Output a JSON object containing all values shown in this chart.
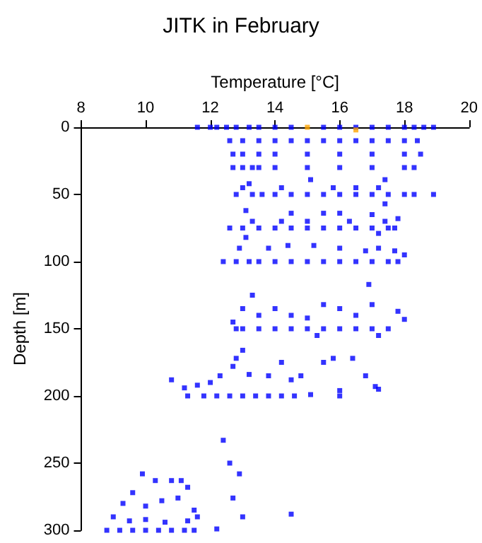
{
  "chart_data": {
    "type": "scatter",
    "title": "JITK in February",
    "xlabel": "Temperature [°C]",
    "ylabel": "Depth [m]",
    "xlim": [
      8,
      20
    ],
    "xticks": [
      8,
      10,
      12,
      14,
      16,
      18,
      20
    ],
    "ylim": [
      300,
      0
    ],
    "yticks": [
      0,
      50,
      100,
      150,
      200,
      250,
      300
    ],
    "grid": false,
    "marker": "square",
    "series": [
      {
        "color": "#0000ff",
        "x": [
          11.6,
          12,
          12.2,
          12.5,
          12.8,
          13.2,
          13.5,
          14,
          14.5,
          15.5,
          16,
          16.5,
          17,
          17.5,
          18,
          18.3,
          18.6,
          18.9,
          12.6,
          13,
          13.5,
          14,
          14.5,
          15,
          15.5,
          16,
          16.5,
          17,
          17.5,
          18,
          18.4,
          12.7,
          13,
          13.5,
          14,
          15,
          16,
          17,
          18,
          18.5,
          12.7,
          13,
          13.3,
          13.5,
          14,
          15,
          16,
          17,
          18,
          18.3,
          15.1,
          17.4,
          13.2,
          12.8,
          13.3,
          13.6,
          14,
          14.5,
          15,
          15.5,
          16,
          16.5,
          17,
          17.5,
          18,
          18.3,
          18.9,
          13,
          14.2,
          15.8,
          16.5,
          17.2,
          17.4,
          13.1,
          14.5,
          15.5,
          16,
          17,
          17.8,
          12.6,
          13,
          13.5,
          14,
          14.5,
          15,
          15.5,
          16,
          16.5,
          17,
          17.5,
          17.7,
          13.3,
          14.2,
          15,
          16.3,
          17.4,
          17.2,
          13.1,
          12.4,
          12.8,
          13.2,
          13.5,
          14,
          14.5,
          15,
          15.5,
          16,
          16.5,
          17,
          17.5,
          17.8,
          12.9,
          13.8,
          14.4,
          15.2,
          16,
          16.8,
          17.2,
          17.7,
          18,
          16.9,
          12.8,
          13,
          13.5,
          14,
          14.5,
          15,
          15.5,
          16,
          16.5,
          17,
          17.5,
          12.7,
          13,
          13.5,
          14,
          14.5,
          15,
          15.5,
          16,
          16.5,
          17,
          17.8,
          18,
          13.3,
          15.3,
          17.2,
          13,
          12.8,
          15.8,
          11.3,
          11.8,
          12.2,
          12.6,
          13,
          13.4,
          13.8,
          14.2,
          14.6,
          15.1,
          16,
          10.8,
          11.2,
          11.6,
          12,
          12.3,
          12.7,
          13.2,
          13.8,
          14.2,
          14.5,
          14.8,
          15.5,
          16,
          16.4,
          16.8,
          17.1,
          17.2,
          12.4,
          12.6,
          12.9,
          12.7,
          13,
          14.5,
          12.2,
          8.8,
          9.2,
          9.6,
          10,
          10.4,
          10.8,
          11.2,
          11.5,
          9,
          9.5,
          10,
          10.6,
          11.3,
          11.6,
          9.3,
          10,
          10.5,
          11,
          11.5,
          10.3,
          10.8,
          11.1,
          11.3,
          9.9,
          9.6
        ],
        "values": [
          0,
          0,
          0,
          0,
          0,
          0,
          0,
          0,
          0,
          0,
          0,
          0,
          0,
          0,
          0,
          0,
          0,
          0,
          10,
          10,
          10,
          10,
          10,
          10,
          10,
          10,
          10,
          10,
          10,
          10,
          10,
          20,
          20,
          20,
          20,
          20,
          20,
          20,
          20,
          20,
          30,
          30,
          30,
          30,
          30,
          30,
          30,
          30,
          30,
          30,
          39,
          39,
          42,
          50,
          50,
          50,
          50,
          50,
          50,
          50,
          50,
          50,
          50,
          50,
          50,
          50,
          50,
          45,
          45,
          45,
          45,
          45,
          57,
          62,
          64,
          64,
          64,
          65,
          68,
          75,
          75,
          75,
          75,
          75,
          75,
          75,
          75,
          75,
          75,
          75,
          75,
          70,
          70,
          70,
          70,
          70,
          79,
          82,
          100,
          100,
          100,
          100,
          100,
          100,
          100,
          100,
          100,
          100,
          100,
          100,
          100,
          90,
          90,
          88,
          88,
          90,
          92,
          90,
          92,
          95,
          117,
          150,
          150,
          150,
          150,
          150,
          150,
          150,
          150,
          150,
          150,
          150,
          145,
          135,
          140,
          135,
          140,
          142,
          132,
          135,
          140,
          132,
          137,
          143,
          125,
          155,
          155,
          166,
          172,
          172,
          200,
          200,
          200,
          200,
          200,
          200,
          200,
          200,
          200,
          199,
          200,
          188,
          194,
          192,
          190,
          185,
          178,
          184,
          185,
          175,
          188,
          185,
          175,
          196,
          172,
          185,
          193,
          195,
          233,
          250,
          258,
          276,
          290,
          288,
          299,
          300,
          300,
          300,
          300,
          300,
          300,
          300,
          300,
          290,
          293,
          292,
          294,
          293,
          290,
          280,
          282,
          278,
          276,
          285,
          263,
          263,
          263,
          268,
          258,
          272
        ]
      },
      {
        "color": "#ffa500",
        "x": [
          15,
          16.5
        ],
        "values": [
          0,
          2
        ]
      }
    ]
  }
}
